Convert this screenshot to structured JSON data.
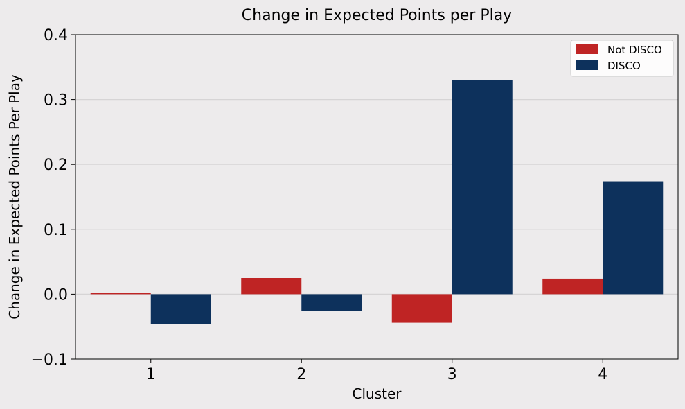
{
  "chart_data": {
    "type": "bar",
    "title": "Change in Expected Points per Play",
    "xlabel": "Cluster",
    "ylabel": "Change in Expected Points Per Play",
    "categories": [
      "1",
      "2",
      "3",
      "4"
    ],
    "series": [
      {
        "name": "Not DISCO",
        "color": "#bf2424",
        "values": [
          0.002,
          0.025,
          -0.044,
          0.024
        ]
      },
      {
        "name": "DISCO",
        "color": "#0d315c",
        "values": [
          -0.046,
          -0.026,
          0.33,
          0.174
        ]
      }
    ],
    "ylim": [
      -0.1,
      0.4
    ],
    "yticks": [
      -0.1,
      0.0,
      0.1,
      0.2,
      0.3,
      0.4
    ],
    "ytick_labels": [
      "−0.1",
      "0.0",
      "0.1",
      "0.2",
      "0.3",
      "0.4"
    ],
    "grid": "horizontal",
    "legend_position": "top-right",
    "colors": {
      "background": "#edebec",
      "grid": "#d6d4d5"
    }
  }
}
